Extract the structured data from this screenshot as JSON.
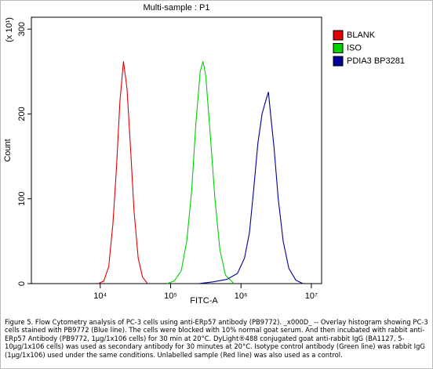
{
  "chart_data": {
    "type": "line",
    "title": "Multi-sample : P1",
    "x_label": "FITC-A",
    "y_label": "Count",
    "y_multiplier": "(x 10¹)",
    "log_x": true,
    "legend": "right",
    "xlim": [
      1050,
      14000000
    ],
    "xticks": [
      {
        "value": 10000,
        "label": "10⁴"
      },
      {
        "value": 100000,
        "label": "10⁵"
      },
      {
        "value": 1000000,
        "label": "10⁶"
      },
      {
        "value": 10000000,
        "label": "10⁷"
      }
    ],
    "ylim": [
      0,
      314
    ],
    "yticks": [
      0,
      100,
      200,
      300
    ],
    "series": [
      {
        "name": "BLANK",
        "color": "#e00000",
        "x": [
          9333,
          11220,
          13183,
          15136,
          16982,
          19055,
          21380,
          23988,
          26915,
          30200,
          34674,
          39811,
          46774
        ],
        "values": [
          0,
          3,
          20,
          70,
          135,
          215,
          262,
          230,
          160,
          85,
          30,
          8,
          0
        ]
      },
      {
        "name": "ISO",
        "color": "#00d000",
        "x": [
          89125,
          112202,
          141254,
          169824,
          199526,
          229087,
          263027,
          288403,
          316228,
          363078,
          426580,
          501187,
          602560,
          794328
        ],
        "values": [
          0,
          3,
          15,
          50,
          110,
          190,
          250,
          262,
          245,
          180,
          100,
          40,
          10,
          0
        ]
      },
      {
        "name": "PDIA3 BP3281",
        "color": "#000099",
        "x": [
          251189,
          398107,
          630957,
          891251,
          1122018,
          1318257,
          1513561,
          1737801,
          1995262,
          2238721,
          2454709,
          2630268,
          2951209,
          3388442,
          3981072,
          4786301,
          6025596,
          7585776
        ],
        "values": [
          0,
          2,
          5,
          12,
          30,
          60,
          110,
          165,
          200,
          215,
          226,
          200,
          160,
          100,
          50,
          18,
          4,
          0
        ]
      }
    ]
  },
  "caption": "Figure 5. Flow Cytometry analysis of PC-3 cells using anti-ERp57 antibody (PB9772). _x000D_ -- Overlay histogram showing PC-3 cells stained with PB9772 (Blue line). The cells were blocked with 10% normal goat serum. And then incubated with rabbit anti-ERp57 Antibody (PB9772, 1µg/1x106 cells) for 30 min at 20°C. DyLight®488 conjugated goat anti-rabbit IgG (BA1127, 5-10µg/1x106 cells) was used as secondary antibody for 30 minutes at 20°C. Isotype control antibody (Green line) was rabbit IgG (1µg/1x106) used under the same conditions. Unlabelled sample (Red line) was also used as a control."
}
